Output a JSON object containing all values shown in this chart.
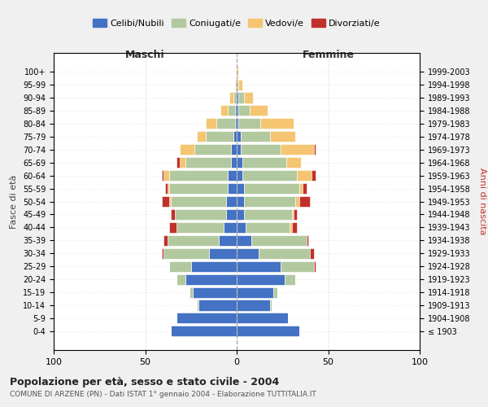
{
  "age_groups": [
    "100+",
    "95-99",
    "90-94",
    "85-89",
    "80-84",
    "75-79",
    "70-74",
    "65-69",
    "60-64",
    "55-59",
    "50-54",
    "45-49",
    "40-44",
    "35-39",
    "30-34",
    "25-29",
    "20-24",
    "15-19",
    "10-14",
    "5-9",
    "0-4"
  ],
  "birth_years": [
    "≤ 1903",
    "1904-1908",
    "1909-1913",
    "1914-1918",
    "1919-1923",
    "1924-1928",
    "1929-1933",
    "1934-1938",
    "1939-1943",
    "1944-1948",
    "1949-1953",
    "1954-1958",
    "1959-1963",
    "1964-1968",
    "1969-1973",
    "1974-1978",
    "1979-1983",
    "1984-1988",
    "1989-1993",
    "1994-1998",
    "1999-2003"
  ],
  "colors": {
    "celibi": "#4472C4",
    "coniugati": "#B2C9A0",
    "vedovi": "#F5C571",
    "divorziati": "#C0312B"
  },
  "males": {
    "celibi": [
      0,
      0,
      0,
      1,
      1,
      2,
      3,
      3,
      5,
      5,
      6,
      6,
      7,
      10,
      15,
      25,
      28,
      24,
      21,
      33,
      36
    ],
    "coniugati": [
      0,
      0,
      2,
      4,
      10,
      15,
      20,
      25,
      32,
      32,
      30,
      28,
      26,
      28,
      25,
      12,
      5,
      2,
      1,
      0,
      0
    ],
    "vedovi": [
      0,
      1,
      2,
      4,
      6,
      5,
      8,
      3,
      3,
      1,
      1,
      0,
      0,
      0,
      0,
      0,
      0,
      0,
      0,
      0,
      0
    ],
    "divorziati": [
      0,
      0,
      0,
      0,
      0,
      0,
      0,
      2,
      1,
      1,
      4,
      2,
      4,
      2,
      1,
      0,
      0,
      0,
      0,
      0,
      0
    ]
  },
  "females": {
    "celibi": [
      0,
      0,
      1,
      1,
      1,
      2,
      2,
      3,
      3,
      4,
      4,
      4,
      5,
      8,
      12,
      24,
      26,
      20,
      18,
      28,
      34
    ],
    "coniugati": [
      0,
      1,
      3,
      6,
      12,
      16,
      22,
      24,
      30,
      30,
      28,
      26,
      24,
      30,
      28,
      18,
      6,
      2,
      1,
      0,
      0
    ],
    "vedovi": [
      1,
      2,
      5,
      10,
      18,
      14,
      18,
      8,
      8,
      2,
      2,
      1,
      1,
      0,
      0,
      0,
      0,
      0,
      0,
      0,
      0
    ],
    "divorziati": [
      0,
      0,
      0,
      0,
      0,
      0,
      1,
      0,
      2,
      2,
      6,
      2,
      3,
      1,
      2,
      1,
      0,
      0,
      0,
      0,
      0
    ]
  },
  "xlim": 100,
  "title": "Popolazione per età, sesso e stato civile - 2004",
  "subtitle": "COMUNE DI ARZENE (PN) - Dati ISTAT 1° gennaio 2004 - Elaborazione TUTTITALIA.IT",
  "ylabel_left": "Fasce di età",
  "ylabel_right": "Anni di nascita",
  "xlabel_left": "Maschi",
  "xlabel_right": "Femmine",
  "legend_labels": [
    "Celibi/Nubili",
    "Coniugati/e",
    "Vedovi/e",
    "Divorziati/e"
  ],
  "bg_color": "#F0F0F0",
  "plot_bg_color": "#FFFFFF"
}
